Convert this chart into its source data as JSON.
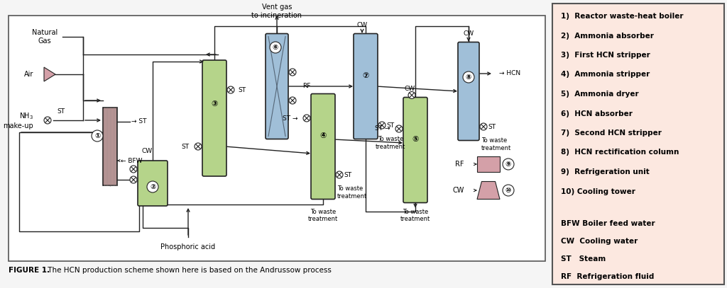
{
  "title_bold": "FIGURE 1.",
  "title_rest": " The HCN production scheme shown here is based on the Andrussow process",
  "legend_bg": "#fce8e0",
  "legend_border": "#555555",
  "diagram_bg": "#ffffff",
  "diagram_border": "#555555",
  "legend_items": [
    "1)  Reactor waste-heat boiler",
    "2)  Ammonia absorber",
    "3)  First HCN stripper",
    "4)  Ammonia stripper",
    "5)  Ammonia dryer",
    "6)  HCN absorber",
    "7)  Second HCN stripper",
    "8)  HCN rectification column",
    "9)  Refrigeration unit",
    "10) Cooling tower"
  ],
  "legend_abbrev": [
    "BFW Boiler feed water",
    "CW  Cooling water",
    "ST   Steam",
    "RF  Refrigeration fluid"
  ],
  "green_color": "#b5d48a",
  "blue_color": "#a0bfd8",
  "pink_color": "#d4a0a8",
  "mauve_color": "#c09898",
  "line_color": "#222222",
  "bg_color": "#f5f5f5"
}
